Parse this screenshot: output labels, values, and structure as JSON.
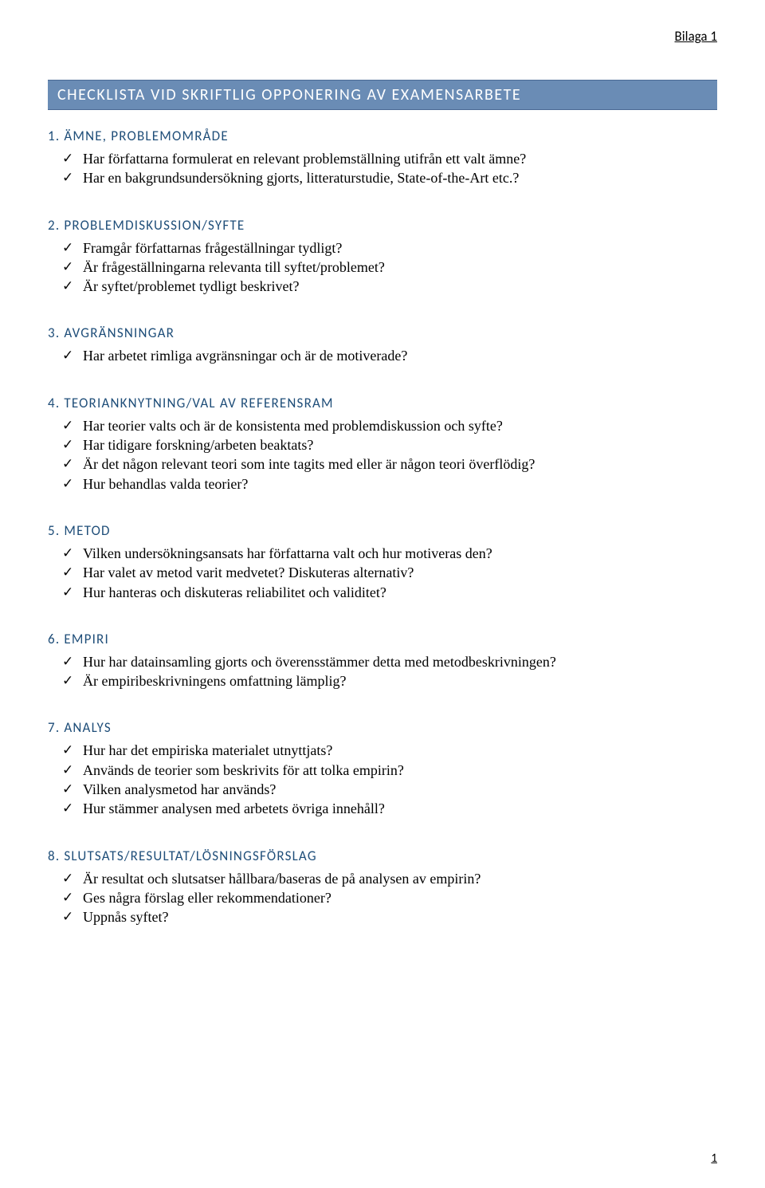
{
  "header_label": "Bilaga 1",
  "main_title": "CHECKLISTA VID SKRIFTLIG OPPONERING AV EXAMENSARBETE",
  "page_number": "1",
  "colors": {
    "title_bar_bg": "#6a8cb5",
    "title_bar_border": "#4a6a95",
    "title_text": "#ffffff",
    "section_heading": "#1f4e79",
    "body_text": "#000000",
    "page_bg": "#ffffff"
  },
  "typography": {
    "title_font": "Calibri",
    "title_size_pt": 15,
    "heading_font": "Calibri",
    "heading_size_pt": 13,
    "body_font": "Garamond",
    "body_size_pt": 13
  },
  "sections": [
    {
      "heading": "1. ÄMNE, PROBLEMOMRÅDE",
      "items": [
        "Har författarna formulerat en relevant problemställning utifrån ett valt ämne?",
        "Har en bakgrundsundersökning gjorts, litteraturstudie, State-of-the-Art etc.?"
      ]
    },
    {
      "heading": "2. PROBLEMDISKUSSION/SYFTE",
      "items": [
        "Framgår författarnas frågeställningar tydligt?",
        "Är frågeställningarna relevanta till syftet/problemet?",
        "Är syftet/problemet tydligt beskrivet?"
      ]
    },
    {
      "heading": "3. AVGRÄNSNINGAR",
      "items": [
        "Har arbetet rimliga avgränsningar och är de motiverade?"
      ]
    },
    {
      "heading": "4. TEORIANKNYTNING/VAL AV REFERENSRAM",
      "items": [
        "Har teorier valts och är de konsistenta med problemdiskussion och syfte?",
        "Har tidigare forskning/arbeten beaktats?",
        "Är det någon relevant teori som inte tagits med eller är någon teori överflödig?",
        "Hur behandlas valda teorier?"
      ]
    },
    {
      "heading": "5. METOD",
      "items": [
        "Vilken undersökningsansats har författarna valt och hur motiveras den?",
        "Har valet av metod varit medvetet? Diskuteras alternativ?",
        "Hur hanteras och diskuteras reliabilitet och validitet?"
      ]
    },
    {
      "heading": "6. EMPIRI",
      "items": [
        "Hur har datainsamling gjorts och överensstämmer detta med metodbeskrivningen?",
        "Är empiribeskrivningens omfattning lämplig?"
      ]
    },
    {
      "heading": "7. ANALYS",
      "items": [
        "Hur har det empiriska materialet utnyttjats?",
        "Används de teorier som beskrivits för att tolka empirin?",
        "Vilken analysmetod har används?",
        "Hur stämmer analysen med arbetets övriga innehåll?"
      ]
    },
    {
      "heading": "8. SLUTSATS/RESULTAT/LÖSNINGSFÖRSLAG",
      "items": [
        "Är resultat och slutsatser hållbara/baseras de på analysen av empirin?",
        "Ges några förslag eller rekommendationer?",
        "Uppnås syftet?"
      ]
    }
  ]
}
